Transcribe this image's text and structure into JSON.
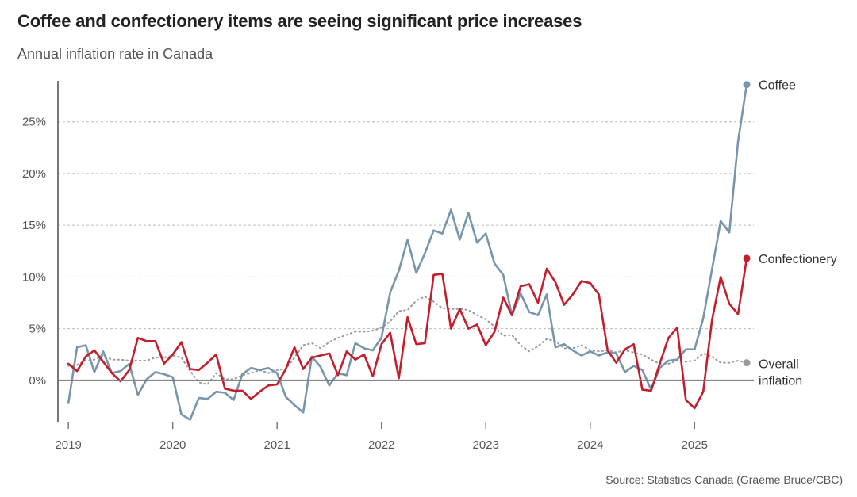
{
  "header": {
    "title": "Coffee and confectionery items are seeing significant price increases",
    "subtitle": "Annual inflation rate in Canada"
  },
  "footer": {
    "source": "Source: Statistics Canada (Graeme Bruce/CBC)"
  },
  "colors": {
    "coffee": "#7795ad",
    "confectionery": "#c41d2c",
    "overall": "#9a9a9a",
    "grid": "#bbbbbb",
    "axis": "#888888"
  },
  "chart_data": {
    "type": "line",
    "title": "Coffee and confectionery items are seeing significant price increases",
    "subtitle": "Annual inflation rate in Canada",
    "xlabel": "",
    "ylabel": "",
    "x_start": "2019-01",
    "frequency": "monthly",
    "x_tick_labels": [
      "2019",
      "2020",
      "2021",
      "2022",
      "2023",
      "2024",
      "2025"
    ],
    "y_tick_labels": [
      "0%",
      "5%",
      "10%",
      "15%",
      "20%",
      "25%"
    ],
    "y_ticks": [
      0,
      5,
      10,
      15,
      20,
      25
    ],
    "xlim": [
      -1.2,
      79
    ],
    "ylim": [
      -4,
      29.5
    ],
    "grid": true,
    "series": [
      {
        "name": "Coffee",
        "label": "Coffee",
        "style": "solid",
        "color": "#7795ad",
        "values": [
          -2.2,
          3.2,
          3.4,
          0.8,
          2.8,
          0.7,
          0.9,
          1.6,
          -1.4,
          0.1,
          0.8,
          0.6,
          0.3,
          -3.3,
          -3.8,
          -1.7,
          -1.8,
          -1.1,
          -1.2,
          -1.9,
          0.6,
          1.2,
          1.0,
          1.2,
          0.7,
          -1.6,
          -2.4,
          -3.1,
          2.3,
          1.3,
          -0.5,
          0.7,
          0.5,
          3.6,
          3.1,
          2.9,
          4.1,
          8.5,
          10.6,
          13.6,
          10.4,
          12.3,
          14.5,
          14.2,
          16.5,
          13.6,
          16.2,
          13.3,
          14.2,
          11.3,
          10.2,
          6.3,
          8.4,
          6.6,
          6.3,
          8.3,
          3.2,
          3.5,
          2.9,
          2.4,
          2.8,
          2.4,
          2.7,
          2.6,
          0.8,
          1.4,
          1.0,
          -0.9,
          1.2,
          1.9,
          2.0,
          3.0,
          3.0,
          6.0,
          10.7,
          15.4,
          14.3,
          23.1,
          28.6
        ],
        "end_label": "Coffee",
        "end_value": 28.6
      },
      {
        "name": "Confectionery",
        "label": "Confectionery",
        "style": "solid",
        "color": "#c41d2c",
        "values": [
          1.6,
          0.9,
          2.3,
          2.9,
          1.8,
          0.7,
          -0.1,
          1.0,
          4.1,
          3.8,
          3.8,
          1.6,
          2.5,
          3.7,
          1.1,
          1.0,
          1.7,
          2.5,
          -0.8,
          -1.0,
          -1.0,
          -1.8,
          -1.1,
          -0.5,
          -0.4,
          1.1,
          3.2,
          1.1,
          2.2,
          2.4,
          2.6,
          0.5,
          2.8,
          2.0,
          2.5,
          0.4,
          3.5,
          4.6,
          0.2,
          6.1,
          3.5,
          3.6,
          10.2,
          10.3,
          5.0,
          6.9,
          5.0,
          5.4,
          3.4,
          4.7,
          8.0,
          6.3,
          9.1,
          9.3,
          7.5,
          10.8,
          9.5,
          7.3,
          8.3,
          9.6,
          9.4,
          8.3,
          2.9,
          1.7,
          3.0,
          3.5,
          -0.9,
          -1.0,
          1.6,
          4.1,
          5.1,
          -1.9,
          -2.7,
          -1.1,
          5.8,
          10.0,
          7.4,
          6.4,
          11.8
        ],
        "end_label": "Confectionery",
        "end_value": 11.8
      },
      {
        "name": "Overall inflation",
        "label_lines": [
          "Overall",
          "inflation"
        ],
        "style": "dotted",
        "color": "#9a9a9a",
        "values": [
          1.4,
          1.5,
          1.9,
          2.0,
          2.4,
          2.0,
          2.0,
          1.9,
          1.9,
          1.9,
          2.2,
          2.2,
          2.4,
          2.2,
          0.9,
          -0.2,
          -0.4,
          0.7,
          0.1,
          0.1,
          0.5,
          0.7,
          1.0,
          0.7,
          1.0,
          1.1,
          2.2,
          3.4,
          3.6,
          3.1,
          3.7,
          4.1,
          4.4,
          4.7,
          4.7,
          4.8,
          5.1,
          5.7,
          6.7,
          6.8,
          7.7,
          8.1,
          7.6,
          7.0,
          6.9,
          6.9,
          6.8,
          6.3,
          5.9,
          5.2,
          4.3,
          4.4,
          3.4,
          2.8,
          3.3,
          4.0,
          3.8,
          3.1,
          3.1,
          3.4,
          2.9,
          2.8,
          2.9,
          2.7,
          2.9,
          2.7,
          2.5,
          2.0,
          1.6,
          1.6,
          1.9,
          1.8,
          1.9,
          2.6,
          2.3,
          1.7,
          1.7,
          1.9,
          1.7
        ],
        "end_value": 1.7
      }
    ]
  }
}
